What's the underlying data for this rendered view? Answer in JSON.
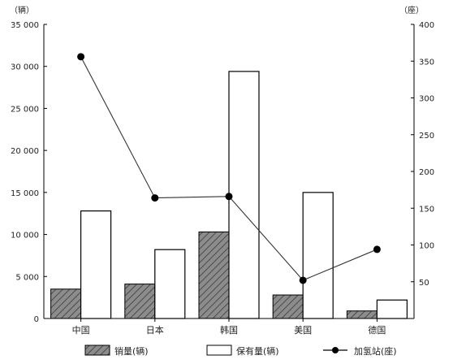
{
  "chart_data": {
    "type": "bar",
    "categories": [
      "中国",
      "日本",
      "韩国",
      "美国",
      "德国"
    ],
    "left_unit": "（辆）",
    "right_unit": "（座）",
    "ylim_left": [
      0,
      35000
    ],
    "ylim_right": [
      0,
      400
    ],
    "left_ticks": [
      "0",
      "5 000",
      "10 000",
      "15 000",
      "20 000",
      "25 000",
      "30 000",
      "35 000"
    ],
    "right_ticks": [
      "50",
      "100",
      "150",
      "200",
      "250",
      "300",
      "350",
      "400"
    ],
    "series": [
      {
        "name": "销量(辆)",
        "kind": "bar",
        "axis": "left",
        "style": "hatched-gray",
        "values": [
          3500,
          4100,
          10300,
          2800,
          900
        ]
      },
      {
        "name": "保有量(辆)",
        "kind": "bar",
        "axis": "left",
        "style": "white",
        "values": [
          12800,
          8200,
          29400,
          15000,
          2200
        ]
      },
      {
        "name": "加氢站(座)",
        "kind": "line",
        "axis": "right",
        "style": "black-dot-line",
        "values": [
          356,
          164,
          166,
          52,
          94
        ]
      }
    ],
    "grid": false,
    "legend_position": "bottom"
  }
}
